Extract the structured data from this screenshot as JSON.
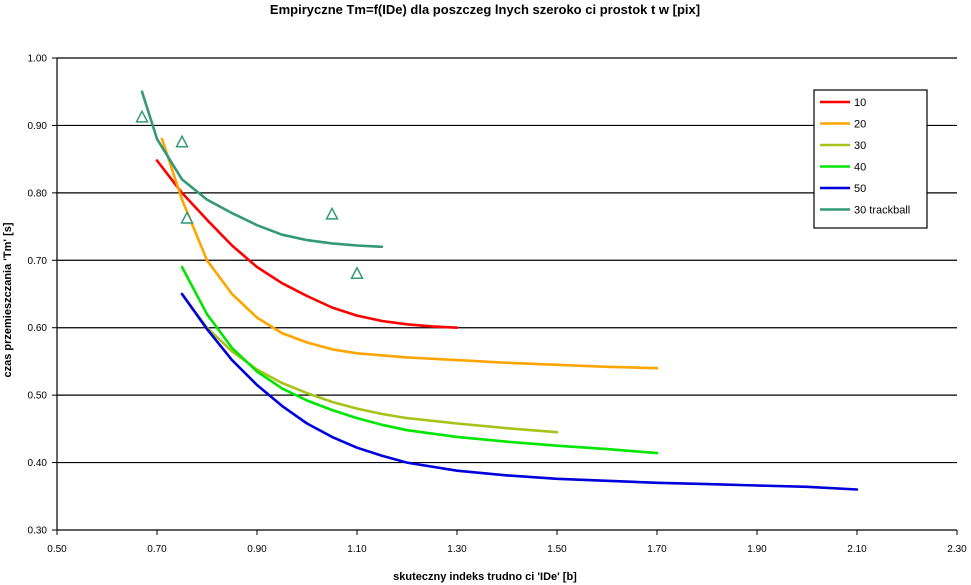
{
  "chart_data": {
    "type": "line",
    "title": "Empiryczne Tm=f(IDe) dla poszczeg lnych szeroko ci prostok t w [pix]",
    "xlabel": "skuteczny indeks trudno ci 'IDe' [b]",
    "ylabel": "czas przemieszczania 'Tm' [s]",
    "xlim": [
      0.5,
      2.3
    ],
    "ylim": [
      0.3,
      1.0
    ],
    "x_ticks": [
      "0.50",
      "0.70",
      "0.90",
      "1.10",
      "1.30",
      "1.50",
      "1.70",
      "1.90",
      "2.10",
      "2.30"
    ],
    "y_ticks": [
      "0.30",
      "0.40",
      "0.50",
      "0.60",
      "0.70",
      "0.80",
      "0.90",
      "1.00"
    ],
    "grid": "horizontal",
    "legend_position": "top-right",
    "series": [
      {
        "name": "10",
        "color": "#ff0000",
        "x": [
          0.7,
          0.75,
          0.8,
          0.85,
          0.9,
          0.95,
          1.0,
          1.05,
          1.1,
          1.15,
          1.2,
          1.25,
          1.3
        ],
        "y": [
          0.848,
          0.8,
          0.76,
          0.722,
          0.69,
          0.666,
          0.647,
          0.63,
          0.618,
          0.61,
          0.605,
          0.602,
          0.6
        ]
      },
      {
        "name": "20",
        "color": "#ffa500",
        "x": [
          0.71,
          0.75,
          0.8,
          0.85,
          0.9,
          0.95,
          1.0,
          1.05,
          1.1,
          1.2,
          1.3,
          1.4,
          1.5,
          1.6,
          1.7
        ],
        "y": [
          0.88,
          0.79,
          0.7,
          0.65,
          0.615,
          0.592,
          0.578,
          0.568,
          0.562,
          0.556,
          0.552,
          0.548,
          0.545,
          0.542,
          0.54
        ]
      },
      {
        "name": "30",
        "color": "#a8c21a",
        "x": [
          0.75,
          0.8,
          0.85,
          0.9,
          0.95,
          1.0,
          1.05,
          1.1,
          1.15,
          1.2,
          1.3,
          1.4,
          1.5
        ],
        "y": [
          0.65,
          0.6,
          0.565,
          0.538,
          0.518,
          0.503,
          0.49,
          0.48,
          0.472,
          0.466,
          0.458,
          0.451,
          0.445
        ]
      },
      {
        "name": "40",
        "color": "#00e600",
        "x": [
          0.75,
          0.8,
          0.85,
          0.9,
          0.95,
          1.0,
          1.05,
          1.1,
          1.15,
          1.2,
          1.3,
          1.4,
          1.5,
          1.6,
          1.7
        ],
        "y": [
          0.69,
          0.62,
          0.57,
          0.535,
          0.51,
          0.492,
          0.478,
          0.466,
          0.456,
          0.448,
          0.438,
          0.431,
          0.425,
          0.42,
          0.414
        ]
      },
      {
        "name": "50",
        "color": "#0000dd",
        "x": [
          0.75,
          0.8,
          0.85,
          0.9,
          0.95,
          1.0,
          1.05,
          1.1,
          1.15,
          1.2,
          1.3,
          1.4,
          1.5,
          1.6,
          1.7,
          1.8,
          1.9,
          2.0,
          2.1
        ],
        "y": [
          0.65,
          0.598,
          0.552,
          0.515,
          0.484,
          0.458,
          0.438,
          0.422,
          0.41,
          0.4,
          0.388,
          0.381,
          0.376,
          0.373,
          0.37,
          0.368,
          0.366,
          0.364,
          0.36
        ]
      },
      {
        "name": "30 trackball",
        "color": "#339977",
        "x": [
          0.67,
          0.7,
          0.75,
          0.8,
          0.85,
          0.9,
          0.95,
          1.0,
          1.05,
          1.1,
          1.15
        ],
        "y": [
          0.95,
          0.88,
          0.82,
          0.79,
          0.77,
          0.752,
          0.738,
          0.73,
          0.725,
          0.722,
          0.72
        ]
      }
    ],
    "markers": {
      "series": "30 trackball",
      "shape": "triangle",
      "color": "#339977",
      "points": [
        {
          "x": 0.67,
          "y": 0.912
        },
        {
          "x": 0.75,
          "y": 0.875
        },
        {
          "x": 0.76,
          "y": 0.762
        },
        {
          "x": 1.05,
          "y": 0.768
        },
        {
          "x": 1.1,
          "y": 0.68
        }
      ]
    }
  }
}
